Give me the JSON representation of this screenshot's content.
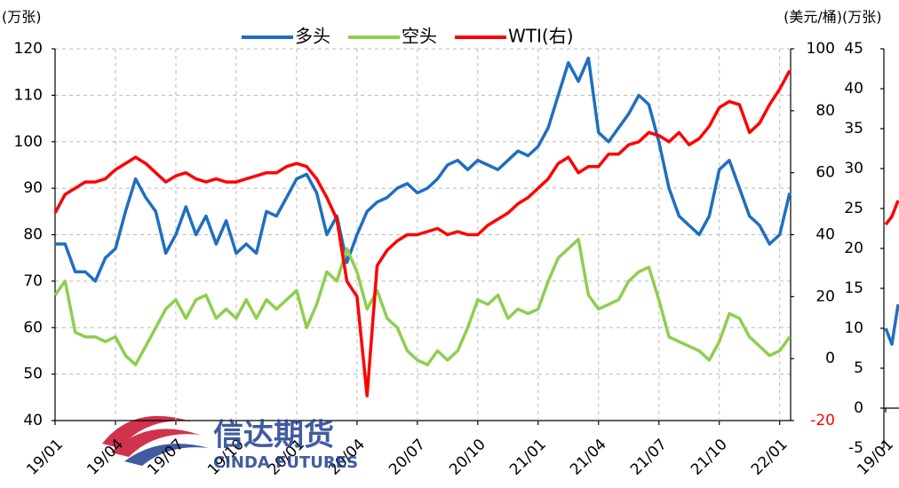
{
  "chart_data": [
    {
      "type": "line",
      "ylabel": "(万张)",
      "y2label": "(美元/桶)",
      "legend": "top",
      "grid": true,
      "categories": [
        "19/01",
        null,
        null,
        null,
        null,
        null,
        "19/04",
        null,
        null,
        null,
        null,
        null,
        "19/07",
        null,
        null,
        null,
        null,
        null,
        "19/10",
        null,
        null,
        null,
        null,
        null,
        "20/01",
        null,
        null,
        null,
        null,
        null,
        "20/04",
        null,
        null,
        null,
        null,
        null,
        "20/07",
        null,
        null,
        null,
        null,
        null,
        "20/10",
        null,
        null,
        null,
        null,
        null,
        "21/01",
        null,
        null,
        null,
        null,
        null,
        "21/04",
        null,
        null,
        null,
        null,
        null,
        "21/07",
        null,
        null,
        null,
        null,
        null,
        "21/10",
        null,
        null,
        null,
        null,
        null,
        "22/01",
        null
      ],
      "ylim": [
        40,
        120
      ],
      "yticks": [
        40,
        50,
        60,
        70,
        80,
        90,
        100,
        110,
        120
      ],
      "y2lim": [
        -20,
        100
      ],
      "y2ticks": [
        -20,
        0,
        20,
        40,
        60,
        80,
        100
      ],
      "y2tick_colors": [
        "#ff0000",
        "#000000",
        "#000000",
        "#000000",
        "#000000",
        "#000000",
        "#000000"
      ],
      "series": [
        {
          "name": "多头",
          "color": "#1f6fbf",
          "values": [
            78,
            78,
            72,
            72,
            70,
            75,
            77,
            85,
            92,
            88,
            85,
            76,
            80,
            86,
            80,
            84,
            78,
            83,
            76,
            78,
            76,
            85,
            84,
            88,
            92,
            93,
            89,
            80,
            84,
            74,
            80,
            85,
            87,
            88,
            90,
            91,
            89,
            90,
            92,
            95,
            96,
            94,
            96,
            95,
            94,
            96,
            98,
            97,
            99,
            103,
            110,
            117,
            113,
            118,
            102,
            100,
            103,
            106,
            110,
            108,
            100,
            90,
            84,
            82,
            80,
            84,
            94,
            96,
            90,
            84,
            82,
            78,
            80,
            89
          ]
        },
        {
          "name": "空头",
          "color": "#8fce4f",
          "values": [
            67,
            70,
            59,
            58,
            58,
            57,
            58,
            54,
            52,
            56,
            60,
            64,
            66,
            62,
            66,
            67,
            62,
            64,
            62,
            66,
            62,
            66,
            64,
            66,
            68,
            60,
            65,
            72,
            70,
            77,
            72,
            64,
            68,
            62,
            60,
            55,
            53,
            52,
            55,
            53,
            55,
            60,
            66,
            65,
            67,
            62,
            64,
            63,
            64,
            70,
            75,
            77,
            79,
            67,
            64,
            65,
            66,
            70,
            72,
            73,
            66,
            58,
            57,
            56,
            55,
            53,
            57,
            63,
            62,
            58,
            56,
            54,
            55,
            58
          ]
        },
        {
          "name": "WTI(右)",
          "color": "#ff0000",
          "axis": "y2",
          "values": [
            47,
            53,
            55,
            57,
            57,
            58,
            61,
            63,
            65,
            63,
            60,
            57,
            59,
            60,
            58,
            57,
            58,
            57,
            57,
            58,
            59,
            60,
            60,
            62,
            63,
            62,
            58,
            52,
            45,
            25,
            20,
            -12,
            30,
            35,
            38,
            40,
            40,
            41,
            42,
            40,
            41,
            40,
            40,
            43,
            45,
            47,
            50,
            52,
            55,
            58,
            63,
            65,
            60,
            62,
            62,
            66,
            66,
            69,
            70,
            73,
            72,
            70,
            73,
            69,
            71,
            75,
            81,
            83,
            82,
            73,
            76,
            82,
            87,
            93
          ]
        }
      ],
      "watermark": {
        "text": "信达期货",
        "subtext": "CINDA FUTURES"
      }
    },
    {
      "type": "line",
      "ylabel": "(万张)",
      "categories": [
        "19/01",
        null,
        null
      ],
      "ylim": [
        -5,
        45
      ],
      "yticks": [
        -5,
        0,
        5,
        10,
        15,
        20,
        25,
        30,
        35,
        40,
        45
      ],
      "series": [
        {
          "color": "#1f6fbf",
          "values": [
            10,
            8,
            13
          ]
        },
        {
          "color": "#ff0000",
          "values": [
            23,
            24,
            26
          ]
        }
      ]
    }
  ]
}
